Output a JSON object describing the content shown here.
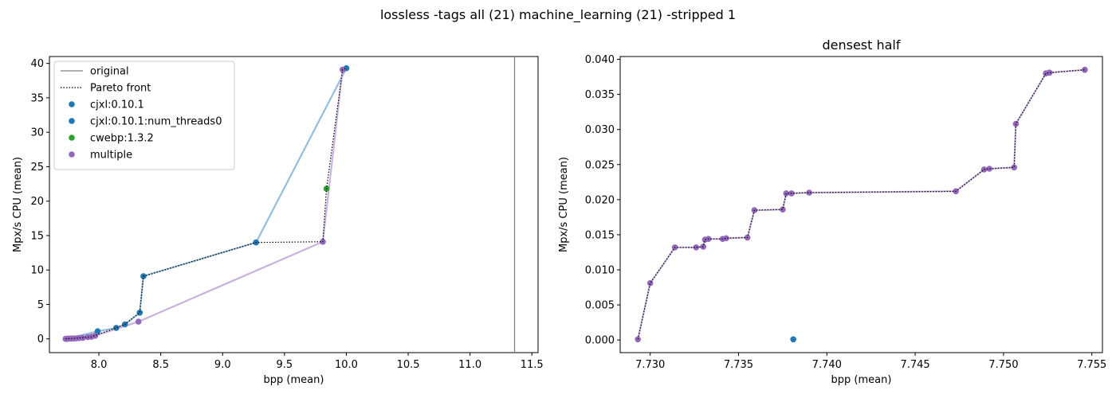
{
  "figure": {
    "suptitle": "lossless -tags all (21) machine_learning (21) -stripped 1"
  },
  "chart_data": [
    {
      "type": "scatter",
      "title": "",
      "xlabel": "bpp (mean)",
      "ylabel": "Mpx/s CPU (mean)",
      "xlim": [
        7.6,
        11.55
      ],
      "ylim": [
        -2,
        41
      ],
      "xticks": [
        "8.0",
        "8.5",
        "9.0",
        "9.5",
        "10.0",
        "10.5",
        "11.0",
        "11.5"
      ],
      "yticks": [
        "0",
        "5",
        "10",
        "15",
        "20",
        "25",
        "30",
        "35",
        "40"
      ],
      "grid": false,
      "legend_position": "upper-left",
      "legend": [
        {
          "label": "original",
          "style": "line",
          "color": "#808080"
        },
        {
          "label": "Pareto front",
          "style": "dotted",
          "color": "#000000"
        },
        {
          "label": "cjxl:0.10.1",
          "style": "marker",
          "color": "#1f77b4"
        },
        {
          "label": "cjxl:0.10.1:num_threads0",
          "style": "marker",
          "color": "#1f77b4"
        },
        {
          "label": "cwebp:1.3.2",
          "style": "marker",
          "color": "#2ca02c"
        },
        {
          "label": "multiple",
          "style": "marker",
          "color": "#9467bd"
        }
      ],
      "vertical_lines": [
        {
          "x": 11.36,
          "color": "#808080"
        }
      ],
      "series": [
        {
          "name": "cjxl:0.10.1",
          "color": "#1f77b4",
          "line_color": "#94bedc",
          "connect": true,
          "points": [
            [
              7.74,
              0.0
            ],
            [
              7.99,
              1.1
            ],
            [
              8.14,
              1.6
            ],
            [
              8.21,
              2.1
            ],
            [
              8.33,
              3.8
            ],
            [
              8.36,
              9.1
            ],
            [
              9.27,
              14.0
            ],
            [
              10.0,
              39.3
            ]
          ]
        },
        {
          "name": "cwebp:1.3.2",
          "color": "#2ca02c",
          "connect": false,
          "points": [
            [
              9.84,
              21.8
            ]
          ]
        },
        {
          "name": "multiple",
          "color": "#9467bd",
          "line_color": "#c9b3de",
          "connect": true,
          "points": [
            [
              7.73,
              0.0
            ],
            [
              7.74,
              0.02
            ],
            [
              7.75,
              0.03
            ],
            [
              7.77,
              0.05
            ],
            [
              7.78,
              0.05
            ],
            [
              7.8,
              0.06
            ],
            [
              7.82,
              0.08
            ],
            [
              7.84,
              0.12
            ],
            [
              7.87,
              0.15
            ],
            [
              7.91,
              0.25
            ],
            [
              7.94,
              0.3
            ],
            [
              7.97,
              0.45
            ],
            [
              8.32,
              2.5
            ],
            [
              9.81,
              14.1
            ],
            [
              9.97,
              39.1
            ]
          ]
        }
      ],
      "pareto_front": [
        [
          7.73,
          0.0
        ],
        [
          7.84,
          0.12
        ],
        [
          7.94,
          0.3
        ],
        [
          8.14,
          1.6
        ],
        [
          8.21,
          2.1
        ],
        [
          8.33,
          3.8
        ],
        [
          8.36,
          9.1
        ],
        [
          9.27,
          14.0
        ],
        [
          9.81,
          14.1
        ],
        [
          9.84,
          21.8
        ],
        [
          9.97,
          39.1
        ],
        [
          10.0,
          39.3
        ]
      ]
    },
    {
      "type": "scatter",
      "title": "densest half",
      "xlabel": "bpp (mean)",
      "ylabel": "Mpx/s CPU (mean)",
      "xlim": [
        7.7283,
        7.7556
      ],
      "ylim": [
        -0.0018,
        0.0404
      ],
      "xticks": [
        "7.730",
        "7.735",
        "7.740",
        "7.745",
        "7.750",
        "7.755"
      ],
      "yticks": [
        "0.000",
        "0.005",
        "0.010",
        "0.015",
        "0.020",
        "0.025",
        "0.030",
        "0.035",
        "0.040"
      ],
      "grid": false,
      "series": [
        {
          "name": "cjxl:0.10.1",
          "color": "#1f77b4",
          "connect": false,
          "points": [
            [
              7.7381,
              0.0001
            ],
            [
              7.7524,
              0.038
            ],
            [
              7.7526,
              0.0381
            ],
            [
              7.7546,
              0.0385
            ]
          ]
        },
        {
          "name": "multiple",
          "color": "#9467bd",
          "line_color": "#c9b3de",
          "connect": true,
          "points": [
            [
              7.7293,
              0.0001
            ],
            [
              7.73,
              0.0081
            ],
            [
              7.7314,
              0.0132
            ],
            [
              7.7326,
              0.0132
            ],
            [
              7.733,
              0.0133
            ],
            [
              7.7331,
              0.0143
            ],
            [
              7.7333,
              0.0144
            ],
            [
              7.7341,
              0.0144
            ],
            [
              7.7343,
              0.0145
            ],
            [
              7.7355,
              0.0146
            ],
            [
              7.7359,
              0.0185
            ],
            [
              7.7375,
              0.0186
            ],
            [
              7.7377,
              0.0209
            ],
            [
              7.738,
              0.0209
            ],
            [
              7.739,
              0.021
            ],
            [
              7.7473,
              0.0212
            ],
            [
              7.7489,
              0.0243
            ],
            [
              7.7492,
              0.0244
            ],
            [
              7.7506,
              0.0246
            ],
            [
              7.7507,
              0.0308
            ],
            [
              7.7524,
              0.038
            ],
            [
              7.7526,
              0.0381
            ],
            [
              7.7546,
              0.0385
            ]
          ]
        }
      ],
      "pareto_front": [
        [
          7.7293,
          0.0001
        ],
        [
          7.73,
          0.0081
        ],
        [
          7.7314,
          0.0132
        ],
        [
          7.7326,
          0.0132
        ],
        [
          7.733,
          0.0133
        ],
        [
          7.7331,
          0.0143
        ],
        [
          7.7333,
          0.0144
        ],
        [
          7.7341,
          0.0144
        ],
        [
          7.7343,
          0.0145
        ],
        [
          7.7355,
          0.0146
        ],
        [
          7.7359,
          0.0185
        ],
        [
          7.7375,
          0.0186
        ],
        [
          7.7377,
          0.0209
        ],
        [
          7.738,
          0.0209
        ],
        [
          7.739,
          0.021
        ],
        [
          7.7473,
          0.0212
        ],
        [
          7.7489,
          0.0243
        ],
        [
          7.7492,
          0.0244
        ],
        [
          7.7506,
          0.0246
        ],
        [
          7.7507,
          0.0308
        ],
        [
          7.7524,
          0.038
        ],
        [
          7.7526,
          0.0381
        ],
        [
          7.7546,
          0.0385
        ]
      ]
    }
  ]
}
